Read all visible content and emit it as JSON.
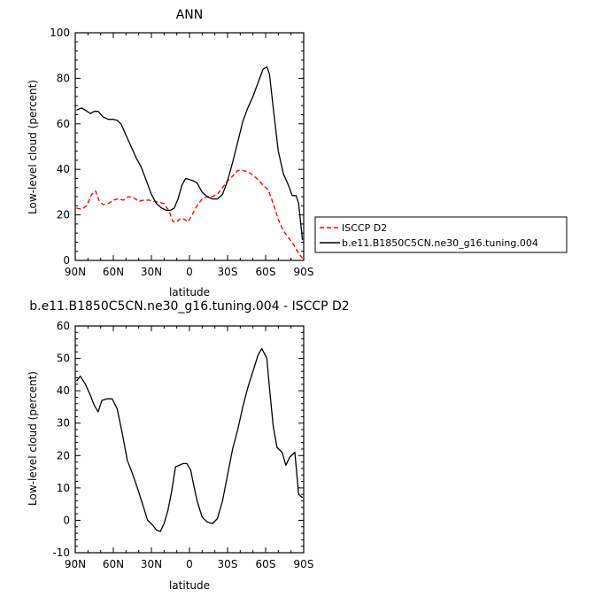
{
  "chart_data": [
    {
      "type": "line",
      "title": "ANN",
      "xlabel": "latitude",
      "ylabel": "Low-level cloud (percent)",
      "xlim": [
        90,
        -90
      ],
      "ylim": [
        0,
        100
      ],
      "xticks": [
        90,
        60,
        30,
        0,
        -30,
        -60,
        -90
      ],
      "xtick_labels": [
        "90N",
        "60N",
        "30N",
        "0",
        "30S",
        "60S",
        "90S"
      ],
      "yticks": [
        0,
        20,
        40,
        60,
        80,
        100
      ],
      "ytick_labels": [
        "0",
        "20",
        "40",
        "60",
        "80",
        "100"
      ],
      "legend_position": "right",
      "series": [
        {
          "name": "ISCCP D2",
          "color": "#ff0000",
          "style": "dashed",
          "x": [
            89,
            85,
            81,
            77,
            74,
            71,
            68,
            64,
            60,
            56,
            52,
            48,
            44,
            40,
            36,
            32,
            28,
            24,
            20,
            16,
            13,
            10,
            7,
            4,
            1,
            -2,
            -6,
            -10,
            -14,
            -18,
            -22,
            -26,
            -30,
            -34,
            -38,
            -42,
            -46,
            -50,
            -54,
            -58,
            -62,
            -66,
            -70,
            -74,
            -78,
            -82,
            -86,
            -89
          ],
          "y": [
            23,
            22.5,
            24,
            29,
            30.5,
            26,
            24.5,
            25,
            26.5,
            27,
            26.5,
            28,
            27.5,
            26,
            26.5,
            26.5,
            26,
            25.5,
            25,
            21.5,
            17,
            17,
            18.5,
            18,
            17,
            20,
            24,
            27,
            28,
            28,
            29,
            32,
            35,
            37,
            39.5,
            39.5,
            39,
            37.5,
            35.5,
            33,
            31,
            25,
            18,
            13,
            10,
            7,
            3,
            1
          ]
        },
        {
          "name": "b.e11.B1850C5CN.ne30_g16.tuning.004",
          "color": "#000000",
          "style": "solid",
          "x": [
            89,
            85,
            82,
            78,
            75,
            72,
            68,
            64,
            60,
            57,
            54,
            50,
            46,
            42,
            38,
            34,
            30,
            26,
            22,
            18,
            15,
            12,
            9,
            6,
            3,
            0,
            -3,
            -6,
            -10,
            -14,
            -18,
            -22,
            -26,
            -30,
            -34,
            -38,
            -42,
            -46,
            -50,
            -54,
            -58,
            -61,
            -63,
            -66,
            -70,
            -74,
            -78,
            -81,
            -84,
            -86,
            -89
          ],
          "y": [
            66,
            67,
            66,
            64.5,
            65.5,
            65.5,
            63,
            62,
            62,
            61.5,
            60,
            55,
            50,
            45,
            41,
            35,
            29,
            25,
            23,
            22,
            22,
            23,
            27,
            33,
            36,
            35.5,
            35,
            34,
            30,
            28,
            27,
            27,
            29,
            35,
            43,
            52,
            61,
            67,
            72,
            78,
            84,
            85,
            82,
            67,
            48,
            38,
            33,
            28.5,
            28.5,
            25,
            9
          ]
        }
      ]
    },
    {
      "type": "line",
      "title": "b.e11.B1850C5CN.ne30_g16.tuning.004 - ISCCP D2",
      "xlabel": "latitude",
      "ylabel": "Low-level cloud (percent)",
      "xlim": [
        90,
        -90
      ],
      "ylim": [
        -10,
        60
      ],
      "xticks": [
        90,
        60,
        30,
        0,
        -30,
        -60,
        -90
      ],
      "xtick_labels": [
        "90N",
        "60N",
        "30N",
        "0",
        "30S",
        "60S",
        "90S"
      ],
      "yticks": [
        -10,
        0,
        10,
        20,
        30,
        40,
        50,
        60
      ],
      "ytick_labels": [
        "-10",
        "0",
        "10",
        "20",
        "30",
        "40",
        "50",
        "60"
      ],
      "series": [
        {
          "color": "#000000",
          "style": "solid",
          "x": [
            89,
            86,
            82,
            78,
            75,
            72,
            69,
            65,
            61,
            57,
            53,
            49,
            45,
            41,
            37,
            33,
            29,
            26,
            23,
            20,
            17,
            14,
            11,
            8,
            5,
            2,
            -1,
            -3,
            -6,
            -10,
            -14,
            -18,
            -22,
            -26,
            -30,
            -34,
            -38,
            -42,
            -46,
            -50,
            -54,
            -57,
            -61,
            -63,
            -66,
            -69,
            -73,
            -76,
            -79,
            -83,
            -86,
            -89
          ],
          "y": [
            43,
            44.5,
            42,
            38.5,
            35.5,
            33.5,
            37,
            37.5,
            37.5,
            34.5,
            27,
            18.5,
            14.5,
            10,
            5,
            0,
            -1.5,
            -3,
            -3.5,
            -1,
            3,
            9,
            16.5,
            17,
            17.5,
            17.5,
            15.5,
            11.5,
            6,
            1,
            -0.5,
            -1,
            0.5,
            6,
            14,
            22,
            28,
            35,
            41,
            46,
            51,
            53,
            50,
            41,
            29,
            22.5,
            21,
            17,
            19.5,
            21,
            8,
            7
          ]
        }
      ]
    }
  ]
}
